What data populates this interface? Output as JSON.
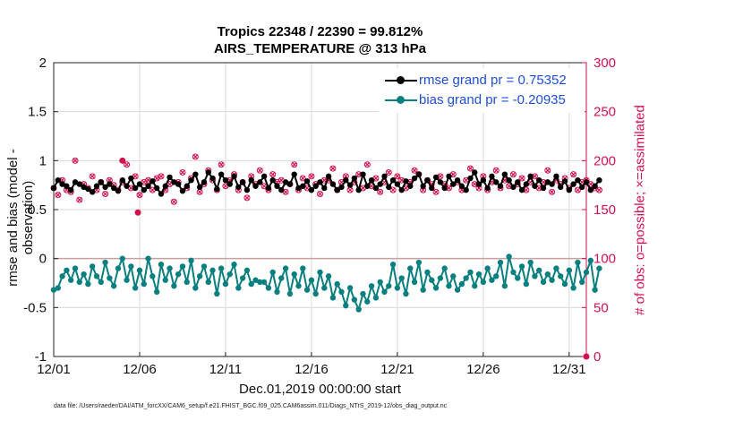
{
  "title_line1": "Tropics 22348 / 22390 = 99.812%",
  "title_line2": "AIRS_TEMPERATURE @ 313 hPa",
  "xlabel": "Dec.01,2019 00:00:00 start",
  "ylabel_left": "rmse and bias (model - observation)",
  "ylabel_right": "# of obs: o=possible; ×=assimilated",
  "footnote": "data file: /Users/raeder/DAI/ATM_forcXX/CAM6_setup/f.e21.FHIST_BGC.f09_025.CAM6assim.011/Diags_NTrS_2019-12/obs_diag_output.nc",
  "legend": {
    "rmse_label": "rmse grand pr = 0.75352",
    "bias_label": "bias grand pr = -0.20935"
  },
  "colors": {
    "rmse": "#000000",
    "bias": "#0a7f7f",
    "obs": "#d1124f",
    "legend_text": "#1f4fd8",
    "grid": "#d9d9d9"
  },
  "chart_data": {
    "type": "line",
    "title": "Tropics 22348 / 22390 = 99.812% AIRS_TEMPERATURE @ 313 hPa",
    "xlabel": "Dec.01,2019 00:00:00 start",
    "ylabel": "rmse and bias (model - observation)",
    "y2label": "# of obs: o=possible; ×=assimilated",
    "xlim": [
      1,
      32
    ],
    "ylim": [
      -1,
      2
    ],
    "y2lim": [
      0,
      300
    ],
    "xticks": [
      1,
      6,
      11,
      16,
      21,
      26,
      31
    ],
    "xtick_labels": [
      "12/01",
      "12/06",
      "12/11",
      "12/16",
      "12/21",
      "12/26",
      "12/31"
    ],
    "yticks": [
      -1,
      -0.5,
      0,
      0.5,
      1,
      1.5,
      2
    ],
    "ytick_labels": [
      "-1",
      "-0.5",
      "0",
      "0.5",
      "1",
      "1.5",
      "2"
    ],
    "y2ticks": [
      0,
      50,
      100,
      150,
      200,
      250,
      300
    ],
    "y2tick_labels": [
      "0",
      "50",
      "100",
      "150",
      "200",
      "250",
      "300"
    ],
    "zero_line": 0,
    "series": [
      {
        "name": "rmse grand pr = 0.75352",
        "axis": "left",
        "x_start": 1,
        "x_step": 0.25,
        "values": [
          0.72,
          0.8,
          0.76,
          0.74,
          0.7,
          0.78,
          0.76,
          0.73,
          0.71,
          0.68,
          0.74,
          0.78,
          0.73,
          0.76,
          0.72,
          0.69,
          0.8,
          0.74,
          0.82,
          0.72,
          0.76,
          0.7,
          0.74,
          0.79,
          0.72,
          0.66,
          0.74,
          0.83,
          0.78,
          0.76,
          0.69,
          0.74,
          0.8,
          0.86,
          0.73,
          0.78,
          0.88,
          0.82,
          0.71,
          0.86,
          0.8,
          0.76,
          0.84,
          0.73,
          0.78,
          0.7,
          0.8,
          0.74,
          0.78,
          0.84,
          0.72,
          0.8,
          0.74,
          0.7,
          0.78,
          0.76,
          0.86,
          0.72,
          0.74,
          0.79,
          0.7,
          0.74,
          0.78,
          0.72,
          0.84,
          0.76,
          0.7,
          0.73,
          0.8,
          0.75,
          0.82,
          0.7,
          0.86,
          0.74,
          0.8,
          0.72,
          0.76,
          0.84,
          0.73,
          0.8,
          0.76,
          0.7,
          0.79,
          0.74,
          0.82,
          0.86,
          0.74,
          0.8,
          0.72,
          0.83,
          0.78,
          0.72,
          0.84,
          0.76,
          0.8,
          0.74,
          0.7,
          0.82,
          0.88,
          0.76,
          0.8,
          0.72,
          0.84,
          0.78,
          0.74,
          0.86,
          0.8,
          0.73,
          0.78,
          0.7,
          0.76,
          0.84,
          0.74,
          0.8,
          0.72,
          0.78,
          0.76,
          0.84,
          0.73,
          0.79,
          0.7,
          0.76,
          0.8,
          0.73,
          0.78,
          0.7,
          0.74,
          0.8
        ]
      },
      {
        "name": "bias grand pr = -0.20935",
        "axis": "left",
        "x_start": 1,
        "x_step": 0.25,
        "values": [
          -0.32,
          -0.3,
          -0.18,
          -0.12,
          -0.22,
          -0.1,
          -0.24,
          -0.16,
          -0.26,
          -0.08,
          -0.18,
          -0.24,
          -0.04,
          -0.2,
          -0.28,
          -0.1,
          0.0,
          -0.22,
          -0.08,
          -0.3,
          -0.12,
          -0.26,
          0.0,
          -0.18,
          -0.34,
          -0.06,
          -0.22,
          -0.1,
          -0.28,
          -0.16,
          -0.08,
          -0.24,
          -0.02,
          -0.3,
          -0.18,
          -0.08,
          -0.24,
          -0.12,
          -0.36,
          -0.1,
          -0.26,
          -0.16,
          -0.06,
          -0.3,
          -0.2,
          -0.12,
          -0.26,
          -0.22,
          -0.24,
          -0.24,
          -0.3,
          -0.14,
          -0.34,
          -0.2,
          -0.1,
          -0.36,
          -0.16,
          -0.28,
          -0.1,
          -0.32,
          -0.22,
          -0.36,
          -0.14,
          -0.3,
          -0.18,
          -0.4,
          -0.26,
          -0.34,
          -0.48,
          -0.3,
          -0.42,
          -0.52,
          -0.36,
          -0.44,
          -0.28,
          -0.4,
          -0.24,
          -0.34,
          -0.28,
          -0.06,
          -0.3,
          -0.2,
          -0.36,
          -0.1,
          -0.24,
          -0.04,
          -0.32,
          -0.14,
          -0.22,
          -0.3,
          -0.2,
          -0.1,
          -0.28,
          -0.18,
          -0.32,
          -0.26,
          -0.2,
          -0.14,
          -0.28,
          -0.16,
          -0.24,
          -0.1,
          -0.22,
          -0.18,
          -0.04,
          -0.28,
          0.02,
          -0.14,
          -0.2,
          -0.08,
          -0.26,
          -0.04,
          -0.18,
          -0.12,
          -0.24,
          -0.16,
          -0.22,
          -0.1,
          -0.18,
          -0.26,
          -0.12,
          -0.3,
          -0.04,
          -0.24,
          -0.14,
          -0.02,
          -0.32,
          -0.1
        ]
      },
      {
        "name": "# of obs possible",
        "axis": "right",
        "marker": "o",
        "x_start": 1,
        "x_step": 0.25,
        "values": [
          172,
          165,
          180,
          170,
          168,
          200,
          160,
          176,
          172,
          184,
          170,
          178,
          166,
          180,
          175,
          170,
          178,
          196,
          172,
          184,
          165,
          178,
          180,
          170,
          182,
          184,
          170,
          176,
          158,
          178,
          188,
          172,
          182,
          204,
          168,
          176,
          190,
          180,
          170,
          196,
          174,
          180,
          186,
          170,
          178,
          162,
          184,
          176,
          190,
          174,
          170,
          186,
          178,
          180,
          168,
          176,
          196,
          170,
          182,
          172,
          184,
          176,
          166,
          180,
          180,
          192,
          170,
          178,
          184,
          170,
          178,
          186,
          172,
          196,
          174,
          182,
          168,
          178,
          188,
          170,
          184,
          180,
          172,
          178,
          190,
          186,
          170,
          180,
          176,
          168,
          184,
          176,
          172,
          186,
          178,
          170,
          180,
          192,
          176,
          172,
          184,
          170,
          178,
          190,
          172,
          180,
          174,
          186,
          176,
          182,
          170,
          178,
          184,
          172,
          178,
          190,
          168,
          180,
          176,
          182,
          172,
          186,
          170,
          178,
          180,
          176,
          172,
          170
        ]
      },
      {
        "name": "# of obs assimilated",
        "axis": "right",
        "marker": "x",
        "x_start": 1,
        "x_step": 0.25,
        "values": [
          172,
          165,
          180,
          170,
          168,
          200,
          160,
          176,
          172,
          184,
          170,
          178,
          166,
          180,
          175,
          170,
          178,
          196,
          172,
          184,
          165,
          178,
          180,
          170,
          182,
          184,
          170,
          176,
          158,
          178,
          188,
          172,
          182,
          204,
          168,
          176,
          190,
          180,
          170,
          196,
          174,
          180,
          186,
          170,
          178,
          162,
          184,
          176,
          190,
          174,
          170,
          186,
          178,
          180,
          168,
          176,
          196,
          170,
          182,
          172,
          184,
          176,
          166,
          180,
          180,
          192,
          170,
          178,
          184,
          170,
          178,
          186,
          172,
          196,
          174,
          182,
          168,
          178,
          188,
          170,
          184,
          180,
          172,
          178,
          190,
          186,
          170,
          180,
          176,
          168,
          184,
          176,
          172,
          186,
          178,
          170,
          180,
          192,
          176,
          172,
          184,
          170,
          178,
          190,
          172,
          180,
          174,
          186,
          176,
          182,
          170,
          178,
          184,
          172,
          178,
          190,
          168,
          180,
          176,
          182,
          172,
          186,
          170,
          178,
          180,
          176,
          172,
          170
        ]
      }
    ],
    "outlier_points": [
      {
        "x": 5.9,
        "y2": 147,
        "axis": "right"
      },
      {
        "x": 5.0,
        "y2": 200,
        "axis": "right"
      },
      {
        "x": 32.0,
        "y2": 0,
        "axis": "right"
      }
    ]
  }
}
